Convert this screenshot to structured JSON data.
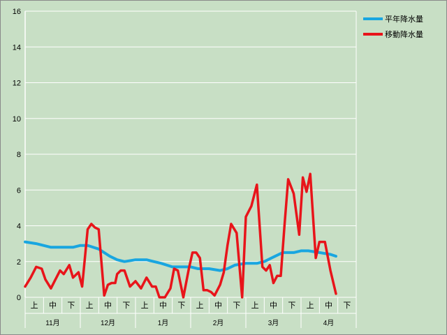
{
  "chart_data": {
    "type": "line",
    "title": "",
    "xlabel": "",
    "ylabel": "",
    "ylim": [
      0,
      16
    ],
    "yticks": [
      0,
      2,
      4,
      6,
      8,
      10,
      12,
      14,
      16
    ],
    "grid": true,
    "legend_position": "top-right",
    "sub_labels": [
      "上",
      "中",
      "下"
    ],
    "months": [
      "11月",
      "12月",
      "1月",
      "2月",
      "3月",
      "4月"
    ],
    "series": [
      {
        "name": "平年降水量",
        "color": "#19a6e0",
        "x": [
          0,
          0.6,
          1.0,
          1.4,
          2.0,
          2.6,
          3.0,
          3.4,
          4.0,
          4.6,
          5.0,
          5.4,
          6.0,
          6.6,
          7.0,
          7.4,
          8.0,
          8.6,
          9.0,
          9.4,
          10.0,
          10.6,
          11.0,
          11.4,
          12.0,
          12.6,
          13.0,
          13.4,
          14.0,
          14.6,
          15.0,
          15.4,
          16.0,
          16.6,
          16.9
        ],
        "y": [
          3.1,
          3.0,
          2.9,
          2.8,
          2.8,
          2.8,
          2.9,
          2.9,
          2.7,
          2.3,
          2.1,
          2.0,
          2.1,
          2.1,
          2.0,
          1.9,
          1.7,
          1.7,
          1.7,
          1.6,
          1.6,
          1.5,
          1.6,
          1.8,
          1.9,
          1.9,
          2.0,
          2.2,
          2.5,
          2.5,
          2.6,
          2.6,
          2.5,
          2.4,
          2.3
        ]
      },
      {
        "name": "移動降水量",
        "color": "#e8141a",
        "x": [
          0,
          0.3,
          0.6,
          0.9,
          1.1,
          1.4,
          1.6,
          1.9,
          2.1,
          2.4,
          2.6,
          2.9,
          3.1,
          3.4,
          3.6,
          3.8,
          4.0,
          4.3,
          4.5,
          4.7,
          4.9,
          5.0,
          5.2,
          5.4,
          5.7,
          6.0,
          6.3,
          6.6,
          6.9,
          7.1,
          7.3,
          7.6,
          7.9,
          8.1,
          8.3,
          8.6,
          8.9,
          9.1,
          9.3,
          9.5,
          9.7,
          9.9,
          10.1,
          10.3,
          10.6,
          10.8,
          11.0,
          11.2,
          11.5,
          11.8,
          12.0,
          12.3,
          12.6,
          12.9,
          13.1,
          13.3,
          13.5,
          13.7,
          13.9,
          14.1,
          14.3,
          14.6,
          14.9,
          15.1,
          15.3,
          15.5,
          15.8,
          16.0,
          16.3,
          16.6,
          16.9
        ],
        "y": [
          0.6,
          1.1,
          1.7,
          1.6,
          1.0,
          0.5,
          0.9,
          1.5,
          1.3,
          1.8,
          1.1,
          1.4,
          0.6,
          3.8,
          4.1,
          3.9,
          3.8,
          0.1,
          0.7,
          0.8,
          0.8,
          1.3,
          1.5,
          1.5,
          0.6,
          0.9,
          0.5,
          1.1,
          0.6,
          0.6,
          0.0,
          0.0,
          0.5,
          1.6,
          1.5,
          0.0,
          1.6,
          2.5,
          2.5,
          2.2,
          0.4,
          0.4,
          0.3,
          0.1,
          0.7,
          1.4,
          2.9,
          4.1,
          3.6,
          0.0,
          4.5,
          5.1,
          6.3,
          1.7,
          1.5,
          1.8,
          0.8,
          1.2,
          1.2,
          4.0,
          6.6,
          5.8,
          3.5,
          6.7,
          5.9,
          6.9,
          2.2,
          3.1,
          3.1,
          1.5,
          0.2
        ]
      }
    ]
  }
}
